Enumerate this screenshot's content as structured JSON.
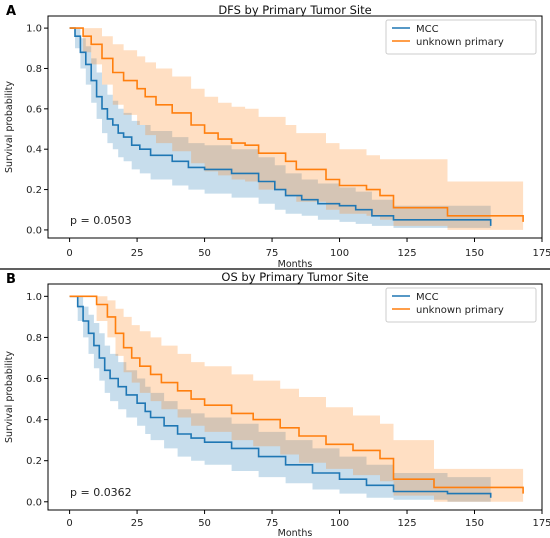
{
  "chart_data": [
    {
      "type": "line",
      "panel": "A",
      "title": "DFS by Primary Tumor Site",
      "xlabel": "Months",
      "ylabel": "Survival probability",
      "xlim": [
        -8,
        175
      ],
      "ylim": [
        -0.04,
        1.06
      ],
      "xticks": [
        0,
        25,
        50,
        75,
        100,
        125,
        150,
        175
      ],
      "yticks": [
        0.0,
        0.2,
        0.4,
        0.6,
        0.8,
        1.0
      ],
      "legend_position": "top-right",
      "annotation": "p = 0.0503",
      "series": [
        {
          "name": "MCC",
          "color": "#1f77b4",
          "x": [
            0,
            2,
            4,
            6,
            8,
            10,
            12,
            14,
            16,
            18,
            20,
            23,
            26,
            30,
            38,
            44,
            50,
            60,
            70,
            76,
            80,
            86,
            92,
            100,
            106,
            112,
            120,
            156
          ],
          "y": [
            1.0,
            0.96,
            0.88,
            0.82,
            0.74,
            0.66,
            0.6,
            0.55,
            0.52,
            0.48,
            0.46,
            0.42,
            0.4,
            0.37,
            0.34,
            0.31,
            0.3,
            0.28,
            0.24,
            0.2,
            0.17,
            0.15,
            0.13,
            0.12,
            0.1,
            0.07,
            0.05,
            0.02
          ],
          "lower": [
            1.0,
            0.9,
            0.8,
            0.72,
            0.63,
            0.55,
            0.48,
            0.43,
            0.4,
            0.36,
            0.34,
            0.3,
            0.28,
            0.25,
            0.22,
            0.2,
            0.18,
            0.16,
            0.13,
            0.1,
            0.08,
            0.07,
            0.05,
            0.04,
            0.03,
            0.02,
            0.01,
            0.0
          ],
          "upper": [
            1.0,
            1.0,
            0.95,
            0.91,
            0.85,
            0.78,
            0.72,
            0.67,
            0.64,
            0.6,
            0.58,
            0.54,
            0.52,
            0.49,
            0.46,
            0.43,
            0.42,
            0.4,
            0.36,
            0.32,
            0.28,
            0.25,
            0.23,
            0.21,
            0.19,
            0.15,
            0.12,
            0.1
          ]
        },
        {
          "name": "unknown primary",
          "color": "#ff7f0e",
          "x": [
            0,
            5,
            8,
            12,
            16,
            20,
            25,
            28,
            32,
            38,
            45,
            50,
            55,
            60,
            65,
            70,
            80,
            84,
            95,
            100,
            110,
            115,
            120,
            140,
            158,
            168
          ],
          "y": [
            1.0,
            0.96,
            0.92,
            0.85,
            0.78,
            0.74,
            0.7,
            0.66,
            0.62,
            0.58,
            0.52,
            0.48,
            0.45,
            0.43,
            0.42,
            0.38,
            0.34,
            0.3,
            0.25,
            0.22,
            0.2,
            0.17,
            0.11,
            0.07,
            0.07,
            0.04
          ],
          "lower": [
            1.0,
            0.88,
            0.82,
            0.72,
            0.62,
            0.57,
            0.52,
            0.47,
            0.43,
            0.39,
            0.33,
            0.29,
            0.27,
            0.25,
            0.24,
            0.2,
            0.17,
            0.14,
            0.1,
            0.08,
            0.07,
            0.05,
            0.02,
            0.0,
            0.0,
            0.0
          ],
          "upper": [
            1.0,
            1.0,
            1.0,
            0.96,
            0.92,
            0.89,
            0.86,
            0.83,
            0.8,
            0.76,
            0.7,
            0.66,
            0.63,
            0.61,
            0.6,
            0.56,
            0.52,
            0.48,
            0.43,
            0.4,
            0.37,
            0.35,
            0.35,
            0.24,
            0.24,
            0.2
          ]
        }
      ]
    },
    {
      "type": "line",
      "panel": "B",
      "title": "OS by Primary Tumor Site",
      "xlabel": "Months",
      "ylabel": "Survival probability",
      "xlim": [
        -8,
        175
      ],
      "ylim": [
        -0.04,
        1.06
      ],
      "xticks": [
        0,
        25,
        50,
        75,
        100,
        125,
        150,
        175
      ],
      "yticks": [
        0.0,
        0.2,
        0.4,
        0.6,
        0.8,
        1.0
      ],
      "legend_position": "top-right",
      "annotation": "p = 0.0362",
      "series": [
        {
          "name": "MCC",
          "color": "#1f77b4",
          "x": [
            0,
            3,
            5,
            7,
            9,
            11,
            13,
            15,
            18,
            21,
            25,
            28,
            30,
            35,
            40,
            45,
            50,
            60,
            70,
            80,
            90,
            100,
            110,
            120,
            140,
            156
          ],
          "y": [
            1.0,
            0.95,
            0.88,
            0.82,
            0.76,
            0.7,
            0.64,
            0.6,
            0.56,
            0.52,
            0.48,
            0.44,
            0.41,
            0.37,
            0.33,
            0.31,
            0.29,
            0.26,
            0.22,
            0.18,
            0.14,
            0.11,
            0.08,
            0.05,
            0.04,
            0.02
          ],
          "lower": [
            1.0,
            0.88,
            0.8,
            0.72,
            0.65,
            0.59,
            0.53,
            0.49,
            0.45,
            0.41,
            0.37,
            0.33,
            0.3,
            0.26,
            0.22,
            0.2,
            0.18,
            0.15,
            0.12,
            0.09,
            0.06,
            0.04,
            0.02,
            0.01,
            0.0,
            0.0
          ],
          "upper": [
            1.0,
            1.0,
            0.95,
            0.91,
            0.87,
            0.82,
            0.76,
            0.72,
            0.68,
            0.64,
            0.6,
            0.56,
            0.53,
            0.49,
            0.45,
            0.43,
            0.41,
            0.38,
            0.34,
            0.3,
            0.26,
            0.22,
            0.18,
            0.14,
            0.12,
            0.1
          ]
        },
        {
          "name": "unknown primary",
          "color": "#ff7f0e",
          "x": [
            0,
            10,
            14,
            17,
            20,
            23,
            26,
            30,
            34,
            40,
            45,
            50,
            60,
            68,
            78,
            85,
            95,
            105,
            115,
            120,
            135,
            158,
            168
          ],
          "y": [
            1.0,
            0.96,
            0.9,
            0.82,
            0.75,
            0.7,
            0.66,
            0.62,
            0.58,
            0.54,
            0.5,
            0.47,
            0.43,
            0.4,
            0.36,
            0.32,
            0.28,
            0.25,
            0.21,
            0.11,
            0.07,
            0.07,
            0.04
          ],
          "lower": [
            1.0,
            0.88,
            0.8,
            0.71,
            0.63,
            0.58,
            0.53,
            0.49,
            0.45,
            0.41,
            0.37,
            0.34,
            0.3,
            0.27,
            0.23,
            0.19,
            0.16,
            0.13,
            0.1,
            0.03,
            0.0,
            0.0,
            0.0
          ],
          "upper": [
            1.0,
            1.0,
            0.98,
            0.94,
            0.9,
            0.86,
            0.83,
            0.8,
            0.76,
            0.72,
            0.68,
            0.66,
            0.62,
            0.59,
            0.55,
            0.51,
            0.46,
            0.42,
            0.38,
            0.3,
            0.16,
            0.16,
            0.16
          ]
        }
      ]
    }
  ]
}
